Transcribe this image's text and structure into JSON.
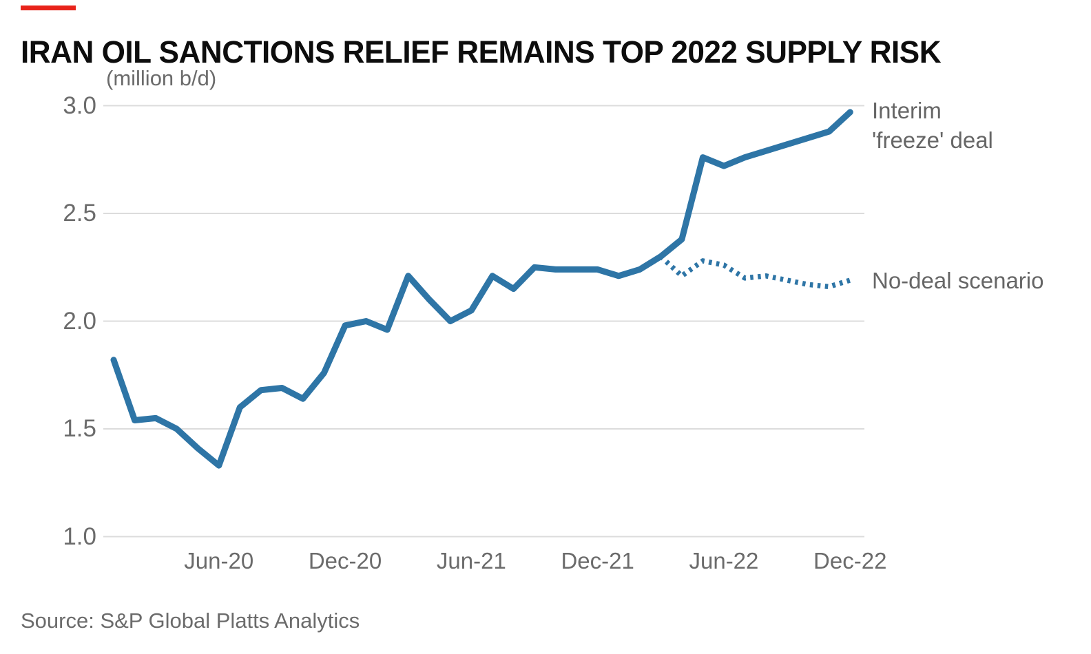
{
  "page": {
    "title": "IRAN OIL SANCTIONS RELIEF REMAINS TOP 2022 SUPPLY RISK",
    "source": "Source: S&P Global Platts Analytics",
    "accent_color": "#e8231a"
  },
  "legend": {
    "interim_line1": "Interim",
    "interim_line2": "'freeze' deal",
    "no_deal": "No-deal scenario"
  },
  "chart_data": {
    "type": "line",
    "title": "IRAN OIL SANCTIONS RELIEF REMAINS TOP 2022 SUPPLY RISK",
    "ylabel": "(million b/d)",
    "xlabel": "",
    "source": "Source: S&P Global Platts Analytics",
    "grid": true,
    "legend_position": "right-of-line-ends",
    "line_color": "#2e75a6",
    "grid_color": "#dcdcdc",
    "text_color": "#6b6b6b",
    "ylim": [
      1.0,
      3.05
    ],
    "y_ticks": [
      3.0,
      2.5,
      2.0,
      1.5,
      1.0
    ],
    "x": [
      "Jan-20",
      "Feb-20",
      "Mar-20",
      "Apr-20",
      "May-20",
      "Jun-20",
      "Jul-20",
      "Aug-20",
      "Sep-20",
      "Oct-20",
      "Nov-20",
      "Dec-20",
      "Jan-21",
      "Feb-21",
      "Mar-21",
      "Apr-21",
      "May-21",
      "Jun-21",
      "Jul-21",
      "Aug-21",
      "Sep-21",
      "Oct-21",
      "Nov-21",
      "Dec-21",
      "Jan-22",
      "Feb-22",
      "Mar-22",
      "Apr-22",
      "May-22",
      "Jun-22",
      "Jul-22",
      "Aug-22",
      "Sep-22",
      "Oct-22",
      "Nov-22",
      "Dec-22"
    ],
    "x_ticks": [
      {
        "label": "Jun-20",
        "index": 5
      },
      {
        "label": "Dec-20",
        "index": 11
      },
      {
        "label": "Jun-21",
        "index": 17
      },
      {
        "label": "Dec-21",
        "index": 23
      },
      {
        "label": "Jun-22",
        "index": 29
      },
      {
        "label": "Dec-22",
        "index": 35
      }
    ],
    "series": [
      {
        "name": "Interim 'freeze' deal",
        "style": "solid",
        "start_index": 0,
        "values": [
          1.82,
          1.54,
          1.55,
          1.5,
          1.41,
          1.33,
          1.6,
          1.68,
          1.69,
          1.64,
          1.76,
          1.98,
          2.0,
          1.96,
          2.21,
          2.1,
          2.0,
          2.05,
          2.21,
          2.15,
          2.25,
          2.24,
          2.24,
          2.24,
          2.21,
          2.24,
          2.3,
          2.38,
          2.76,
          2.72,
          2.76,
          2.79,
          2.82,
          2.85,
          2.88,
          2.97
        ]
      },
      {
        "name": "No-deal scenario",
        "style": "dotted",
        "start_index": 26,
        "values": [
          2.3,
          2.21,
          2.28,
          2.26,
          2.2,
          2.21,
          2.19,
          2.17,
          2.16,
          2.19
        ]
      }
    ]
  }
}
